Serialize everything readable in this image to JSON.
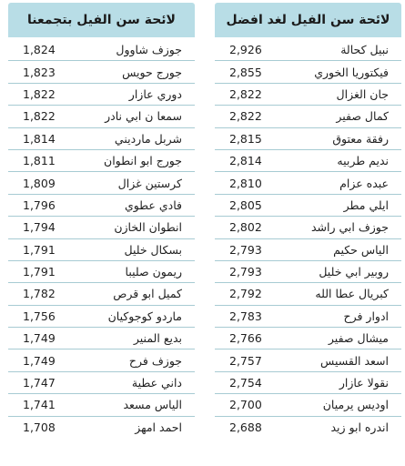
{
  "right_table": {
    "title": "لائحة سن الفيل لغد افضل",
    "rows": [
      {
        "name": "نبيل كحالة",
        "votes": "2,926"
      },
      {
        "name": "فيكتوريا الخوري",
        "votes": "2,855"
      },
      {
        "name": "جان الغزال",
        "votes": "2,822"
      },
      {
        "name": "كمال صفير",
        "votes": "2,822"
      },
      {
        "name": "رفقة معتوق",
        "votes": "2,815"
      },
      {
        "name": "نديم طربيه",
        "votes": "2,814"
      },
      {
        "name": "عبده عزام",
        "votes": "2,810"
      },
      {
        "name": "ايلي مطر",
        "votes": "2,805"
      },
      {
        "name": "جوزف ابي راشد",
        "votes": "2,802"
      },
      {
        "name": "الياس حكيم",
        "votes": "2,793"
      },
      {
        "name": "روبير ابي خليل",
        "votes": "2,793"
      },
      {
        "name": "كبريال عطا الله",
        "votes": "2,792"
      },
      {
        "name": "ادوار فرح",
        "votes": "2,783"
      },
      {
        "name": "ميشال صفير",
        "votes": "2,766"
      },
      {
        "name": "اسعد القسيس",
        "votes": "2,757"
      },
      {
        "name": "نقولا عازار",
        "votes": "2,754"
      },
      {
        "name": "اوديس يرميان",
        "votes": "2,700"
      },
      {
        "name": "اندره ابو زيد",
        "votes": "2,688"
      }
    ]
  },
  "left_table": {
    "title": "لائحة سن الفيل بتجمعنا",
    "rows": [
      {
        "name": "جوزف شاوول",
        "votes": "1,824"
      },
      {
        "name": "جورج حويس",
        "votes": "1,823"
      },
      {
        "name": "دوري عازار",
        "votes": "1,822"
      },
      {
        "name": "سمعا ن ابي نادر",
        "votes": "1,822"
      },
      {
        "name": "شربل مارديني",
        "votes": "1,814"
      },
      {
        "name": "جورج ابو انطوان",
        "votes": "1,811"
      },
      {
        "name": "كرستين غزال",
        "votes": "1,809"
      },
      {
        "name": "فادي عطوي",
        "votes": "1,796"
      },
      {
        "name": "انطوان الخازن",
        "votes": "1,794"
      },
      {
        "name": "بسكال خليل",
        "votes": "1,791"
      },
      {
        "name": "ريمون صليبا",
        "votes": "1,791"
      },
      {
        "name": "كميل ابو قرص",
        "votes": "1,782"
      },
      {
        "name": "ماردو كوجوكيان",
        "votes": "1,756"
      },
      {
        "name": "بديع المنير",
        "votes": "1,749"
      },
      {
        "name": "جوزف فرح",
        "votes": "1,749"
      },
      {
        "name": "داني عطية",
        "votes": "1,747"
      },
      {
        "name": "الياس مسعد",
        "votes": "1,741"
      },
      {
        "name": "احمد امهز",
        "votes": "1,708"
      }
    ]
  },
  "colors": {
    "header_bg": "#b8dde6",
    "row_divider": "#a7cbd3",
    "text": "#1f1f1f"
  }
}
